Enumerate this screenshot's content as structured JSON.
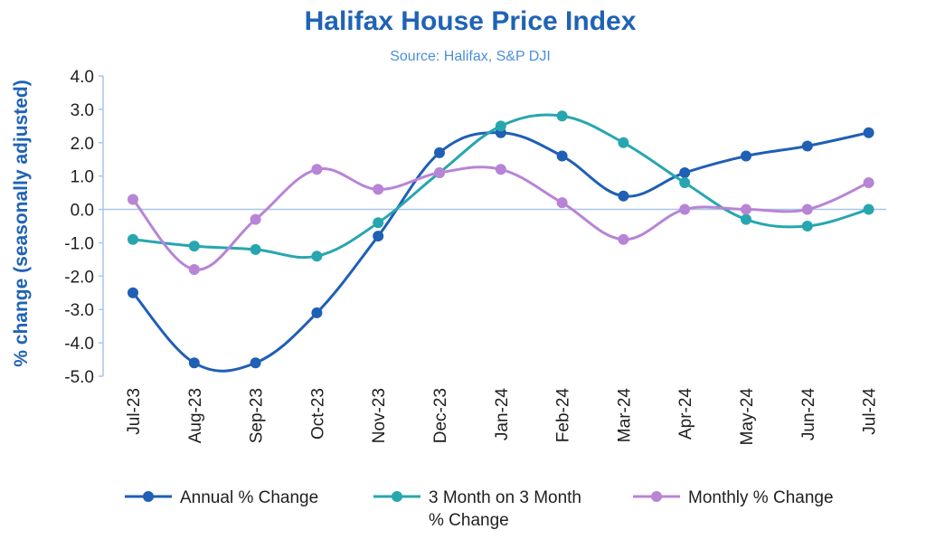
{
  "chart_data": {
    "type": "line",
    "title": "Halifax House Price Index",
    "subtitle": "Source: Halifax, S&P DJI",
    "xlabel": "",
    "ylabel": "% change (seasonally adjusted)",
    "ylim": [
      -5.0,
      4.0
    ],
    "y_ticks": [
      "4.0",
      "3.0",
      "2.0",
      "1.0",
      "0.0",
      "-1.0",
      "-2.0",
      "-3.0",
      "-4.0",
      "-5.0"
    ],
    "y_tick_values": [
      4,
      3,
      2,
      1,
      0,
      -1,
      -2,
      -3,
      -4,
      -5
    ],
    "grid": false,
    "legend_position": "bottom",
    "categories": [
      "Jul-23",
      "Aug-23",
      "Sep-23",
      "Oct-23",
      "Nov-23",
      "Dec-23",
      "Jan-24",
      "Feb-24",
      "Mar-24",
      "Apr-24",
      "May-24",
      "Jun-24",
      "Jul-24"
    ],
    "series": [
      {
        "name": "Annual % Change",
        "color": "#1f5fb4",
        "values": [
          -2.5,
          -4.6,
          -4.6,
          -3.1,
          -0.8,
          1.7,
          2.3,
          1.6,
          0.4,
          1.1,
          1.6,
          1.9,
          2.3
        ]
      },
      {
        "name": "3 Month on 3 Month % Change",
        "legend_lines": [
          "3 Month on 3 Month",
          "% Change"
        ],
        "color": "#27a6b0",
        "values": [
          -0.9,
          -1.1,
          -1.2,
          -1.4,
          -0.4,
          1.1,
          2.5,
          2.8,
          2.0,
          0.8,
          -0.3,
          -0.5,
          0.0
        ]
      },
      {
        "name": "Monthly % Change",
        "color": "#b884d6",
        "values": [
          0.3,
          -1.8,
          -0.3,
          1.2,
          0.6,
          1.1,
          1.2,
          0.2,
          -0.9,
          0.0,
          0.0,
          0.0,
          0.8
        ]
      }
    ],
    "colors": {
      "title": "#1f63b6",
      "subtitle": "#4a90d9",
      "ylabel": "#1f63b6",
      "axis": "#a9c6e8"
    }
  }
}
